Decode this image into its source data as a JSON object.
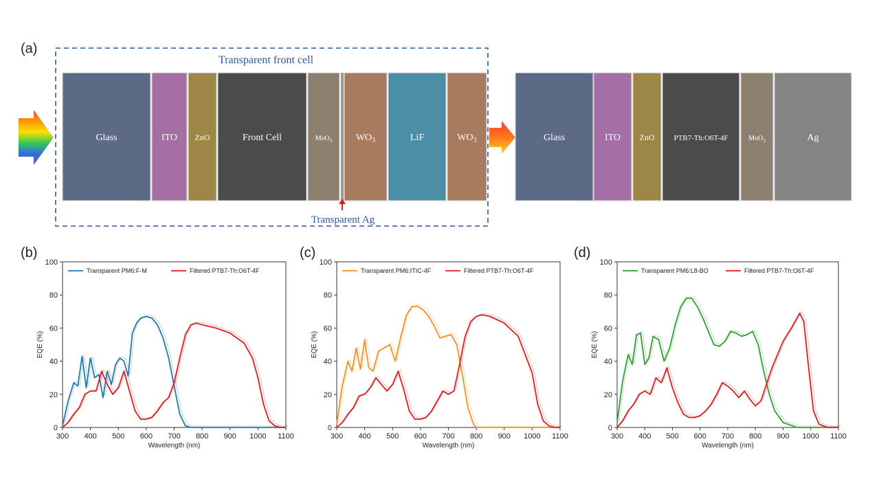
{
  "panel_labels": [
    "(a)",
    "(b)",
    "(c)",
    "(d)"
  ],
  "diagram": {
    "front_cell_title": "Transparent front cell",
    "transparent_ag_label": "Transparent Ag",
    "front_layers": [
      {
        "label": "Glass",
        "color": "#5d6a85"
      },
      {
        "label": "ITO",
        "color": "#a46fa5"
      },
      {
        "label": "ZnO",
        "color": "#9c8746"
      },
      {
        "label": "Front Cell",
        "color": "#4b4b4b"
      },
      {
        "label": "MoO3",
        "color": "#8d8071"
      },
      {
        "label": "WO3",
        "color": "#a87a5e"
      },
      {
        "label": "LiF",
        "color": "#4c8ea6"
      },
      {
        "label": "WO3",
        "color": "#a87a5e"
      }
    ],
    "back_layers": [
      {
        "label": "Glass",
        "color": "#5d6a85"
      },
      {
        "label": "ITO",
        "color": "#a46fa5"
      },
      {
        "label": "ZnO",
        "color": "#9c8746"
      },
      {
        "label": "PTB7-Th:O6T-4F",
        "color": "#4b4b4b"
      },
      {
        "label": "MoO3",
        "color": "#8d8071"
      },
      {
        "label": "Ag",
        "color": "#848484"
      }
    ],
    "dashed_color": "#2e5597",
    "arrow_color": "#e02020"
  },
  "chart_data": [
    {
      "type": "line",
      "panel": "(b)",
      "xlabel": "Wavelength (nm)",
      "ylabel": "EQE (%)",
      "xlim": [
        300,
        1100
      ],
      "ylim": [
        0,
        100
      ],
      "xticks": [
        300,
        400,
        500,
        600,
        700,
        800,
        900,
        1000,
        1100
      ],
      "yticks": [
        0,
        20,
        40,
        60,
        80,
        100
      ],
      "legend_position": "top",
      "series": [
        {
          "name": "Transparent PM6:F-M",
          "color": "#1f77b4",
          "x": [
            300,
            320,
            340,
            355,
            370,
            385,
            400,
            415,
            430,
            445,
            460,
            475,
            490,
            505,
            520,
            535,
            550,
            565,
            580,
            600,
            620,
            640,
            660,
            680,
            700,
            720,
            740,
            760,
            800,
            900,
            1000,
            1100
          ],
          "y": [
            1,
            16,
            27,
            25,
            43,
            24,
            42,
            30,
            32,
            18,
            34,
            26,
            38,
            42,
            40,
            31,
            57,
            63,
            66,
            67,
            66,
            62,
            54,
            42,
            25,
            8,
            1,
            0,
            0,
            0,
            0,
            0
          ]
        },
        {
          "name": "Filtered PTB7-Th:O6T-4F",
          "color": "#e31a1c",
          "x": [
            300,
            320,
            340,
            360,
            380,
            400,
            420,
            440,
            460,
            480,
            500,
            520,
            540,
            560,
            580,
            600,
            620,
            640,
            660,
            680,
            700,
            720,
            740,
            760,
            780,
            800,
            850,
            900,
            950,
            980,
            1000,
            1020,
            1040,
            1060,
            1080,
            1100
          ],
          "y": [
            0,
            3,
            8,
            12,
            20,
            22,
            22,
            34,
            26,
            20,
            24,
            34,
            22,
            10,
            5,
            5,
            6,
            10,
            15,
            18,
            27,
            42,
            56,
            62,
            63,
            62,
            60,
            57,
            51,
            42,
            30,
            14,
            4,
            1,
            0,
            0
          ]
        }
      ]
    },
    {
      "type": "line",
      "panel": "(c)",
      "xlabel": "Wavelength (nm)",
      "ylabel": "EQE (%)",
      "xlim": [
        300,
        1100
      ],
      "ylim": [
        0,
        100
      ],
      "xticks": [
        300,
        400,
        500,
        600,
        700,
        800,
        900,
        1000,
        1100
      ],
      "yticks": [
        0,
        20,
        40,
        60,
        80,
        100
      ],
      "legend_position": "top",
      "series": [
        {
          "name": "Transparent PM6:ITIC-4F",
          "color": "#ff8c1a",
          "x": [
            300,
            320,
            340,
            355,
            370,
            385,
            400,
            415,
            430,
            450,
            470,
            490,
            510,
            530,
            550,
            570,
            590,
            610,
            630,
            650,
            670,
            690,
            710,
            730,
            750,
            770,
            790,
            800,
            850,
            900,
            1000,
            1100
          ],
          "y": [
            2,
            25,
            40,
            34,
            48,
            35,
            53,
            36,
            34,
            46,
            48,
            50,
            40,
            55,
            68,
            73,
            73,
            71,
            67,
            61,
            54,
            55,
            56,
            50,
            32,
            12,
            2,
            0,
            0,
            0,
            0,
            0
          ]
        },
        {
          "name": "Filtered PTB7-Th:O6T-4F",
          "color": "#e31a1c",
          "x": [
            300,
            320,
            340,
            360,
            380,
            400,
            420,
            440,
            460,
            480,
            500,
            520,
            540,
            560,
            580,
            600,
            620,
            640,
            660,
            680,
            700,
            720,
            740,
            760,
            780,
            800,
            820,
            850,
            900,
            950,
            1000,
            1020,
            1040,
            1060,
            1080,
            1100
          ],
          "y": [
            0,
            3,
            8,
            12,
            19,
            20,
            24,
            30,
            26,
            22,
            26,
            34,
            23,
            10,
            5,
            5,
            6,
            10,
            16,
            22,
            20,
            22,
            38,
            55,
            64,
            67,
            68,
            67,
            63,
            55,
            33,
            14,
            4,
            1,
            0,
            0
          ]
        }
      ]
    },
    {
      "type": "line",
      "panel": "(d)",
      "xlabel": "Wavelength (nm)",
      "ylabel": "EQE (%)",
      "xlim": [
        300,
        1100
      ],
      "ylim": [
        0,
        100
      ],
      "xticks": [
        300,
        400,
        500,
        600,
        700,
        800,
        900,
        1000,
        1100
      ],
      "yticks": [
        0,
        20,
        40,
        60,
        80,
        100
      ],
      "legend_position": "top",
      "series": [
        {
          "name": "Transparent PM6:L8-BO",
          "color": "#2ca02c",
          "x": [
            300,
            320,
            340,
            355,
            370,
            385,
            400,
            415,
            430,
            450,
            470,
            490,
            510,
            530,
            550,
            570,
            590,
            610,
            630,
            650,
            670,
            690,
            710,
            730,
            750,
            770,
            790,
            810,
            830,
            850,
            870,
            900,
            950,
            1000,
            1100
          ],
          "y": [
            3,
            28,
            44,
            38,
            56,
            57,
            38,
            42,
            55,
            53,
            40,
            48,
            62,
            73,
            78,
            78,
            73,
            66,
            58,
            50,
            49,
            52,
            58,
            57,
            55,
            56,
            58,
            50,
            34,
            20,
            10,
            3,
            0,
            0,
            0
          ]
        },
        {
          "name": "Filtered PTB7-Th:O6T-4F",
          "color": "#e31a1c",
          "x": [
            300,
            320,
            340,
            360,
            380,
            400,
            420,
            440,
            460,
            480,
            500,
            520,
            540,
            560,
            580,
            600,
            620,
            640,
            660,
            680,
            700,
            720,
            740,
            760,
            780,
            800,
            820,
            840,
            860,
            880,
            900,
            930,
            960,
            975,
            990,
            1010,
            1030,
            1060,
            1100
          ],
          "y": [
            0,
            4,
            10,
            14,
            20,
            22,
            20,
            30,
            27,
            36,
            24,
            15,
            8,
            6,
            6,
            7,
            10,
            14,
            20,
            27,
            25,
            22,
            18,
            22,
            17,
            13,
            16,
            26,
            36,
            44,
            52,
            60,
            69,
            64,
            40,
            10,
            2,
            0,
            0
          ]
        }
      ]
    }
  ]
}
